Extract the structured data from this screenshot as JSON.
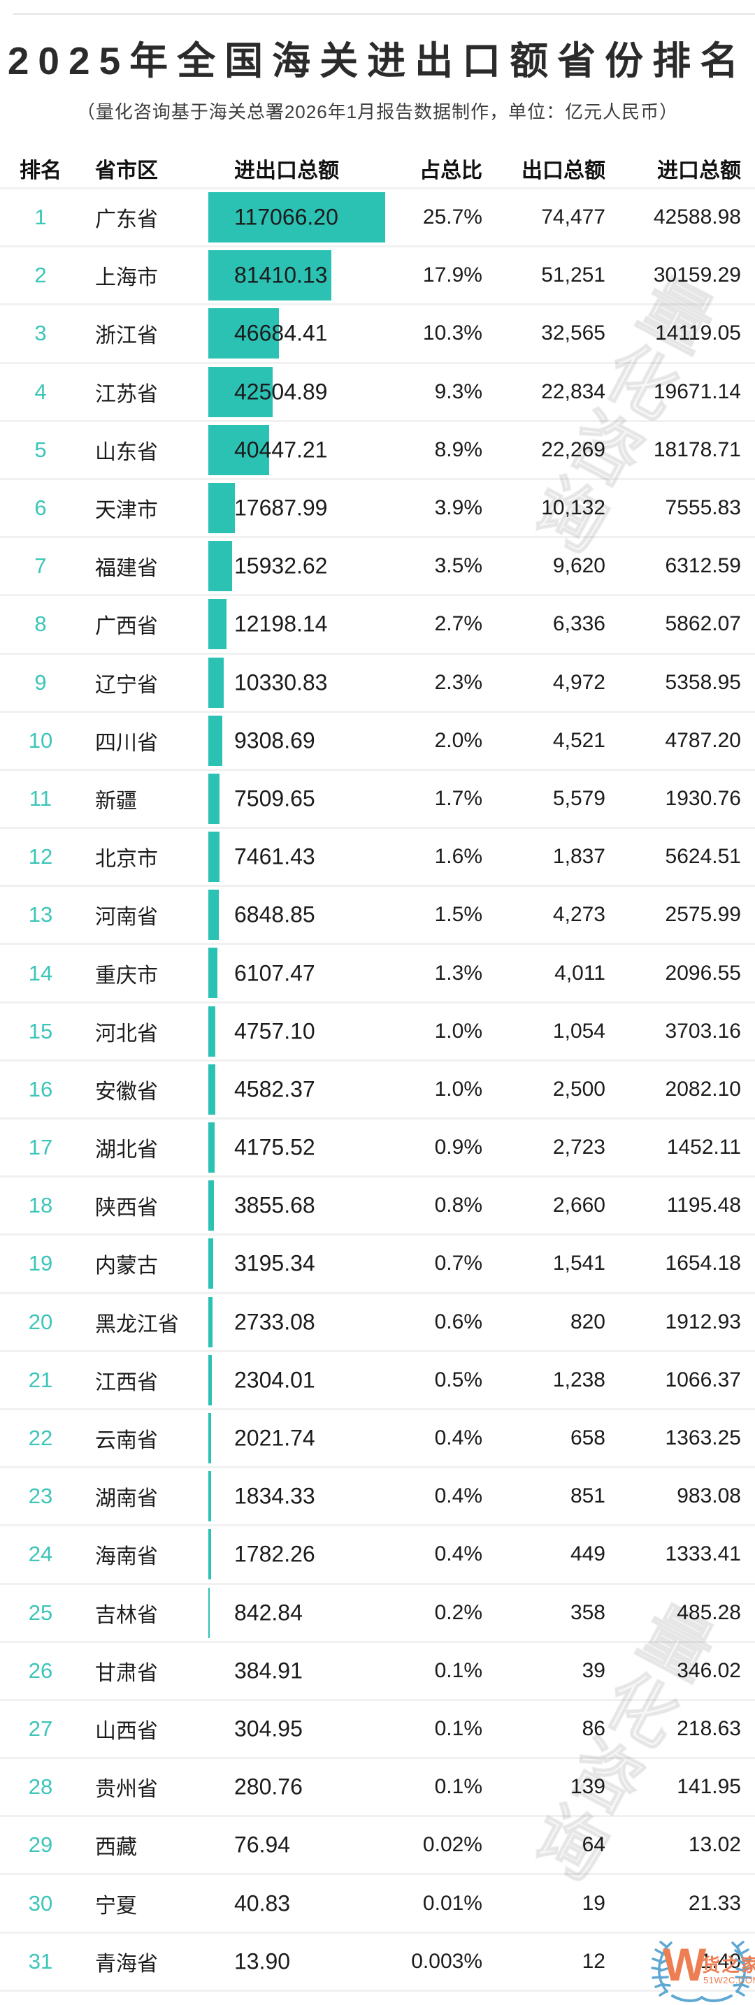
{
  "chart_data": {
    "type": "bar",
    "orientation": "horizontal",
    "title": "2025年全国海关进出口额省份排名",
    "subtitle": "（量化咨询基于海关总署2026年1月报告数据制作，单位：亿元人民币）",
    "unit": "亿元人民币",
    "columns": [
      "排名",
      "省市区",
      "进出口总额",
      "占总比",
      "出口总额",
      "进口总额"
    ],
    "ranks": [
      "1",
      "2",
      "3",
      "4",
      "5",
      "6",
      "7",
      "8",
      "9",
      "10",
      "11",
      "12",
      "13",
      "14",
      "15",
      "16",
      "17",
      "18",
      "19",
      "20",
      "21",
      "22",
      "23",
      "24",
      "25",
      "26",
      "27",
      "28",
      "29",
      "30",
      "31"
    ],
    "categories": [
      "广东省",
      "上海市",
      "浙江省",
      "江苏省",
      "山东省",
      "天津市",
      "福建省",
      "广西省",
      "辽宁省",
      "四川省",
      "新疆",
      "北京市",
      "河南省",
      "重庆市",
      "河北省",
      "安徽省",
      "湖北省",
      "陕西省",
      "内蒙古",
      "黑龙江省",
      "江西省",
      "云南省",
      "湖南省",
      "海南省",
      "吉林省",
      "甘肃省",
      "山西省",
      "贵州省",
      "西藏",
      "宁夏",
      "青海省"
    ],
    "totals": [
      "117066.20",
      "81410.13",
      "46684.41",
      "42504.89",
      "40447.21",
      "17687.99",
      "15932.62",
      "12198.14",
      "10330.83",
      "9308.69",
      "7509.65",
      "7461.43",
      "6848.85",
      "6107.47",
      "4757.10",
      "4582.37",
      "4175.52",
      "3855.68",
      "3195.34",
      "2733.08",
      "2304.01",
      "2021.74",
      "1834.33",
      "1782.26",
      "842.84",
      "384.91",
      "304.95",
      "280.76",
      "76.94",
      "40.83",
      "13.90"
    ],
    "shares": [
      "25.7%",
      "17.9%",
      "10.3%",
      "9.3%",
      "8.9%",
      "3.9%",
      "3.5%",
      "2.7%",
      "2.3%",
      "2.0%",
      "1.7%",
      "1.6%",
      "1.5%",
      "1.3%",
      "1.0%",
      "1.0%",
      "0.9%",
      "0.8%",
      "0.7%",
      "0.6%",
      "0.5%",
      "0.4%",
      "0.4%",
      "0.4%",
      "0.2%",
      "0.1%",
      "0.1%",
      "0.1%",
      "0.02%",
      "0.01%",
      "0.003%"
    ],
    "exports": [
      "74,477",
      "51,251",
      "32,565",
      "22,834",
      "22,269",
      "10,132",
      "9,620",
      "6,336",
      "4,972",
      "4,521",
      "5,579",
      "1,837",
      "4,273",
      "4,011",
      "1,054",
      "2,500",
      "2,723",
      "2,660",
      "1,541",
      "820",
      "1,238",
      "658",
      "851",
      "449",
      "358",
      "39",
      "86",
      "139",
      "64",
      "19",
      "12"
    ],
    "imports": [
      "42588.98",
      "30159.29",
      "14119.05",
      "19671.14",
      "18178.71",
      "7555.83",
      "6312.59",
      "5862.07",
      "5358.95",
      "4787.20",
      "1930.76",
      "5624.51",
      "2575.99",
      "2096.55",
      "3703.16",
      "2082.10",
      "1452.11",
      "1195.48",
      "1654.18",
      "1912.93",
      "1066.37",
      "1363.25",
      "983.08",
      "1333.41",
      "485.28",
      "346.02",
      "218.63",
      "141.95",
      "13.02",
      "21.33",
      "1.40"
    ],
    "xlim": [
      0,
      117066.2
    ],
    "bar_color": "#2bc2b4",
    "legend_position": "none",
    "grid": false
  },
  "watermark": {
    "text": "量化咨询"
  },
  "logo": {
    "mark": "W",
    "name": "货之家",
    "site": "51W2C.COM"
  }
}
